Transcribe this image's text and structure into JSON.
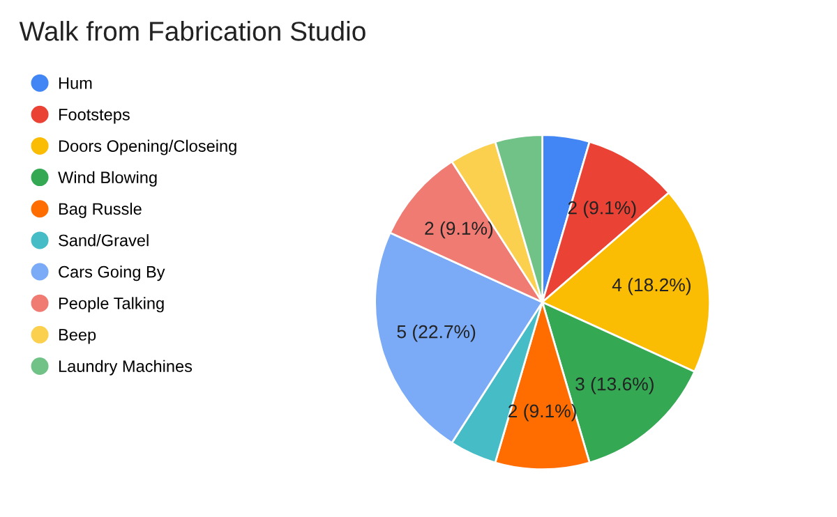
{
  "chart_data": {
    "type": "pie",
    "title": "Walk from Fabrication Studio",
    "categories": [
      "Hum",
      "Footsteps",
      "Doors Opening/Closeing",
      "Wind Blowing",
      "Bag Russle",
      "Sand/Gravel",
      "Cars Going By",
      "People Talking",
      "Beep",
      "Laundry Machines"
    ],
    "values": [
      1,
      2,
      4,
      3,
      2,
      1,
      5,
      2,
      1,
      1
    ],
    "value_labels": [
      null,
      "2 (9.1%)",
      "4 (18.2%)",
      "3 (13.6%)",
      "2 (9.1%)",
      null,
      "5 (22.7%)",
      "2 (9.1%)",
      null,
      null
    ],
    "colors": [
      "#4285f4",
      "#ea4335",
      "#fbbc04",
      "#34a853",
      "#ff6d01",
      "#46bdc6",
      "#7baaf7",
      "#f07b72",
      "#fcd04f",
      "#71c287"
    ],
    "legend": "left"
  }
}
